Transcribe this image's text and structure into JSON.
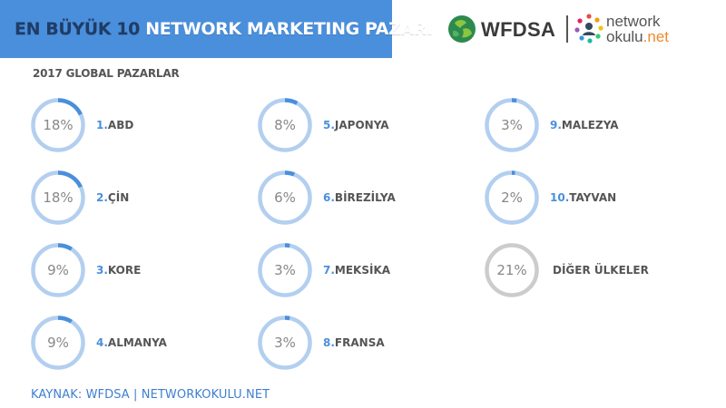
{
  "header": {
    "title_part1": "EN BÜYÜK 10",
    "title_part2": "NETWORK MARKETING PAZARI",
    "bar_color": "#4a8fdc"
  },
  "logos": {
    "wfdsa_text": "WFDSA",
    "networkokulu_line1": "network",
    "networkokulu_line2_main": "okulu",
    "networkokulu_line2_tld": ".net"
  },
  "chart_data": {
    "type": "donut",
    "title": "2017 GLOBAL PAZARLAR",
    "unit": "%",
    "items": [
      {
        "rank": "1.",
        "label": "ABD",
        "value": 18
      },
      {
        "rank": "2.",
        "label": "ÇİN",
        "value": 18
      },
      {
        "rank": "3.",
        "label": "KORE",
        "value": 9
      },
      {
        "rank": "4.",
        "label": "ALMANYA",
        "value": 9
      },
      {
        "rank": "5.",
        "label": "JAPONYA",
        "value": 8
      },
      {
        "rank": "6.",
        "label": "BİREZİLYA",
        "value": 6
      },
      {
        "rank": "7.",
        "label": "MEKSİKA",
        "value": 3
      },
      {
        "rank": "8.",
        "label": "FRANSA",
        "value": 3
      },
      {
        "rank": "9.",
        "label": "MALEZYA",
        "value": 3
      },
      {
        "rank": "10.",
        "label": "TAYVAN",
        "value": 2
      },
      {
        "rank": "",
        "label": "DİĞER ÜLKELER",
        "value": 21,
        "style": "other"
      }
    ],
    "colors": {
      "ring": "#b3cff0",
      "arc": "#4a8fdc",
      "value_text": "#888888",
      "rank_text": "#4a8fdc",
      "label_text": "#555555",
      "other_ring": "#cccccc"
    }
  },
  "footer": {
    "source": "KAYNAK: WFDSA | NETWORKOKULU.NET"
  }
}
